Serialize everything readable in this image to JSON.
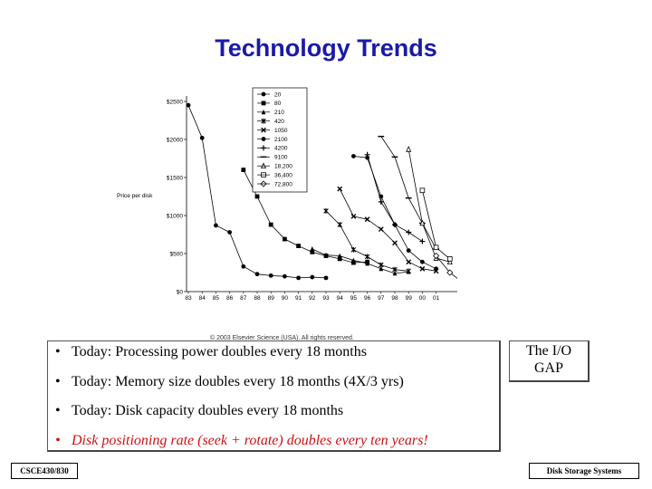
{
  "title": "Technology Trends",
  "chart_data": {
    "type": "line",
    "ylabel": "Price per disk",
    "x": [
      "83",
      "84",
      "85",
      "86",
      "87",
      "88",
      "89",
      "90",
      "91",
      "92",
      "93",
      "94",
      "95",
      "96",
      "97",
      "98",
      "99",
      "00",
      "01"
    ],
    "yticks": [
      "$0",
      "$500",
      "$1000",
      "$1500",
      "$2000",
      "$2500"
    ],
    "ylim": [
      0,
      2500
    ],
    "legend_position": "top-center",
    "series": [
      {
        "name": "20",
        "marker": "circle",
        "x": [
          0,
          1,
          2,
          3,
          4,
          5,
          6,
          7,
          8,
          9,
          10
        ],
        "values": [
          2450,
          2020,
          870,
          780,
          330,
          230,
          210,
          200,
          180,
          190,
          180
        ]
      },
      {
        "name": "80",
        "marker": "square",
        "x": [
          4,
          5,
          6,
          7,
          8,
          9,
          10,
          11,
          12,
          13
        ],
        "values": [
          1600,
          1250,
          880,
          690,
          600,
          520,
          470,
          430,
          380,
          390
        ]
      },
      {
        "name": "210",
        "marker": "triangle",
        "x": [
          9,
          10,
          11,
          12,
          13,
          14,
          15,
          16
        ],
        "values": [
          560,
          480,
          470,
          410,
          370,
          300,
          240,
          260
        ]
      },
      {
        "name": "420",
        "marker": "asterisk",
        "x": [
          10,
          11,
          12,
          13,
          14,
          15,
          16
        ],
        "values": [
          1060,
          880,
          550,
          460,
          350,
          290,
          270
        ]
      },
      {
        "name": "1050",
        "marker": "x",
        "x": [
          11,
          12,
          13,
          14,
          15,
          16,
          17,
          18
        ],
        "values": [
          1350,
          990,
          950,
          820,
          640,
          390,
          300,
          270
        ]
      },
      {
        "name": "2100",
        "marker": "circle",
        "x": [
          12,
          13,
          14,
          15,
          16,
          17,
          18
        ],
        "values": [
          1780,
          1760,
          1250,
          880,
          540,
          390,
          300
        ]
      },
      {
        "name": "4200",
        "marker": "plus",
        "x": [
          13,
          14,
          15,
          16,
          17
        ],
        "values": [
          1800,
          1180,
          880,
          780,
          660
        ]
      },
      {
        "name": "9100",
        "marker": "dash",
        "x": [
          14,
          15,
          16,
          17,
          18
        ],
        "values": [
          2040,
          1770,
          1230,
          900,
          560
        ]
      },
      {
        "name": "18,200",
        "marker": "triangle-open",
        "x": [
          16,
          17,
          18,
          19
        ],
        "values": [
          1870,
          900,
          440,
          390
        ]
      },
      {
        "name": "36,400",
        "marker": "square-open",
        "x": [
          17,
          18,
          19
        ],
        "values": [
          1330,
          580,
          430
        ]
      },
      {
        "name": "72,800",
        "marker": "diamond-open",
        "x": [
          18,
          19,
          20
        ],
        "values": [
          470,
          250,
          110
        ]
      }
    ]
  },
  "copyright": "© 2003 Elsevier Science (USA). All rights reserved.",
  "bullets": [
    "Today:  Processing power doubles every 18 months",
    "Today:  Memory size doubles every 18 months (4X/3 yrs)",
    "Today:  Disk capacity doubles every 18 months",
    "Disk positioning rate (seek + rotate) doubles every ten years!"
  ],
  "bullet_marker": "•",
  "gap_label_line1": "The I/O",
  "gap_label_line2": "GAP",
  "footer_left": "CSCE430/830",
  "footer_right": "Disk Storage Systems",
  "colors": {
    "title": "#1a1aa6",
    "highlight": "#cc1111",
    "series": "#000000"
  }
}
